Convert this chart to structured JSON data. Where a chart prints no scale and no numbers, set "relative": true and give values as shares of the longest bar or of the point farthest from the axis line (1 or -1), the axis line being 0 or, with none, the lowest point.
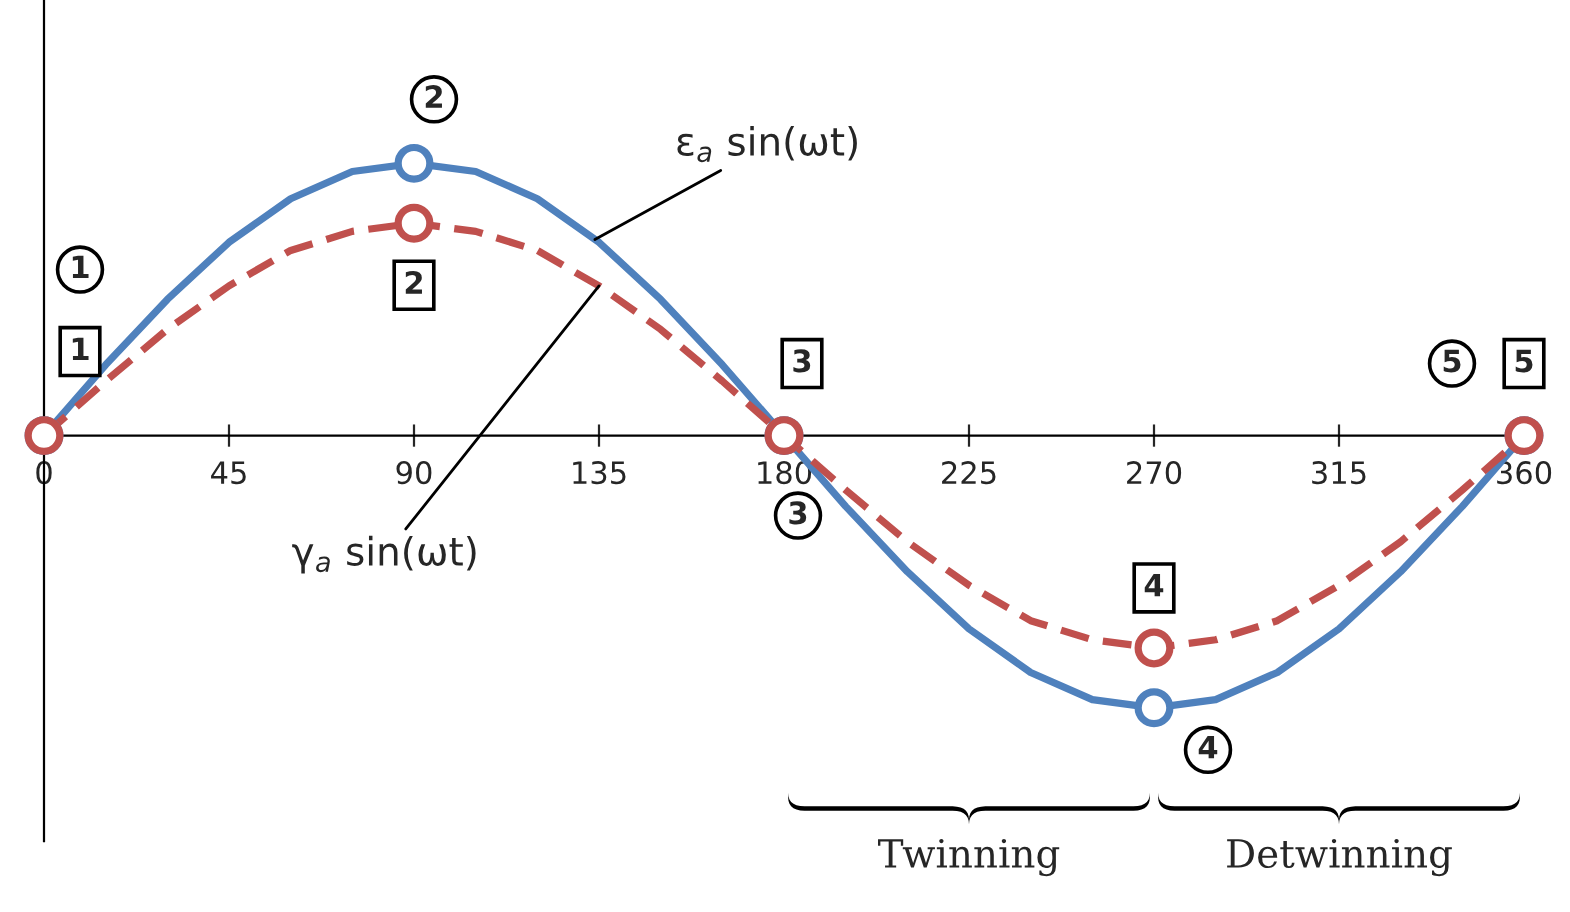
{
  "chart_data": {
    "type": "line",
    "relative": true,
    "x": [
      0,
      15,
      30,
      45,
      60,
      75,
      90,
      105,
      120,
      135,
      150,
      165,
      180,
      195,
      210,
      225,
      240,
      255,
      270,
      285,
      300,
      315,
      330,
      345,
      360
    ],
    "xlim": [
      0,
      360
    ],
    "xticks": [
      0,
      45,
      90,
      135,
      180,
      225,
      270,
      315,
      360
    ],
    "series": [
      {
        "color": "#4f81bd",
        "line_style": "solid",
        "values": [
          0,
          0.26,
          0.5,
          0.71,
          0.87,
          0.97,
          1,
          0.97,
          0.87,
          0.71,
          0.5,
          0.26,
          0,
          -0.26,
          -0.5,
          -0.71,
          -0.87,
          -0.97,
          -1,
          -0.97,
          -0.87,
          -0.71,
          -0.5,
          -0.26,
          0
        ]
      },
      {
        "color": "#c0504d",
        "line_style": "dashed",
        "values": [
          0,
          0.2,
          0.39,
          0.55,
          0.68,
          0.75,
          0.78,
          0.75,
          0.68,
          0.55,
          0.39,
          0.2,
          0,
          -0.2,
          -0.39,
          -0.55,
          -0.68,
          -0.75,
          -0.78,
          -0.75,
          -0.68,
          -0.55,
          -0.39,
          -0.2,
          0
        ]
      },
      {
        "type": "scatter",
        "marker": "circle",
        "color": "#4f81bd",
        "x": [
          0,
          90,
          180,
          270,
          360
        ],
        "values": [
          0,
          1,
          0,
          -1,
          0
        ]
      },
      {
        "type": "scatter",
        "marker": "circle",
        "color": "#c0504d",
        "x": [
          0,
          90,
          180,
          270,
          360
        ],
        "values": [
          0,
          0.78,
          0,
          -0.78,
          0
        ]
      }
    ],
    "annotations": [
      "1",
      {
        "text": "2",
        "x": 90,
        "y": 1
      },
      {
        "text": "3",
        "x": 180,
        "y": 0
      },
      {
        "text": "4",
        "x": 270,
        "y": -1
      },
      {
        "text": "5",
        "x": 360,
        "y": 0
      },
      "1",
      {
        "text": "2",
        "x": 90,
        "y": 0.78
      },
      {
        "text": "3",
        "x": 180,
        "y": 0
      },
      {
        "text": "4",
        "x": 270,
        "y": -0.78
      },
      {
        "text": "5",
        "x": 360,
        "y": 0
      },
      {
        "text": "ε$_{a}$ sin(ωt)",
        "x": 134,
        "y": 0.72
      },
      {
        "text": "γ$_{a}$ sin(ωt)",
        "x": 135,
        "y": 0.55
      },
      "Twinning",
      "Detwinning"
    ],
    "grid": false,
    "legend": false
  }
}
